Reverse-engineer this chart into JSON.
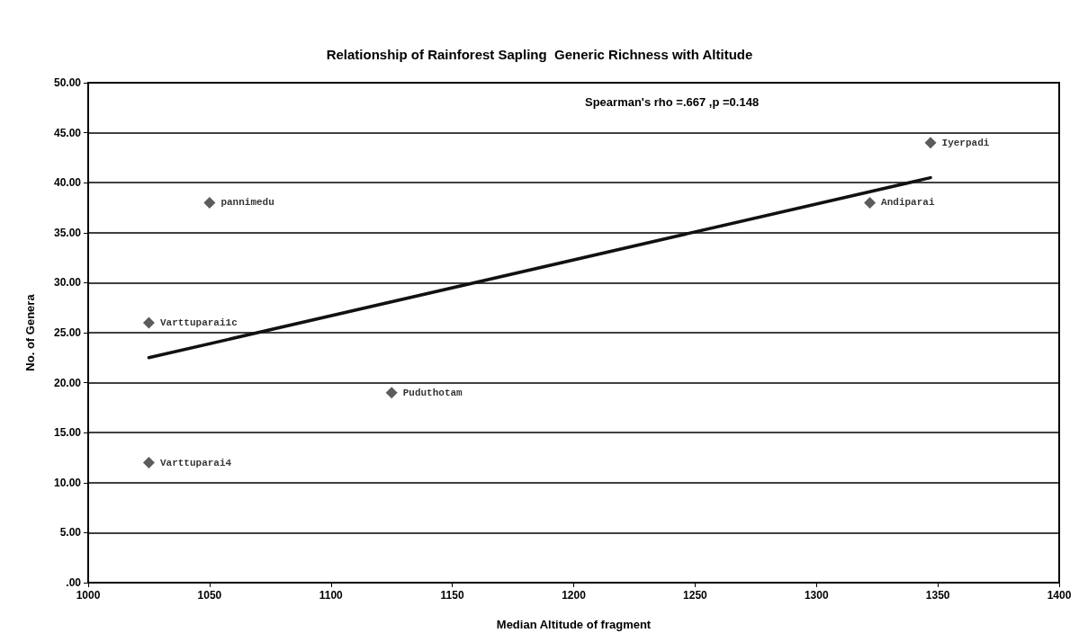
{
  "chart_data": {
    "type": "scatter",
    "title": "Relationship of Rainforest Sapling  Generic Richness with Altitude",
    "xlabel": "Median Altitude of fragment",
    "ylabel": "No. of Genera",
    "annotations": [
      "Spearman's rho =.667 ,p =0.148"
    ],
    "series": [
      {
        "name": "pannimedu",
        "color": "#333333",
        "x": [
          1050
        ],
        "values": [
          38
        ]
      },
      {
        "name": "Varttuparai1c",
        "color": "#333333",
        "x": [
          1025
        ],
        "values": [
          26
        ]
      },
      {
        "name": "Puduthotam",
        "color": "#333333",
        "x": [
          1125
        ],
        "values": [
          19
        ]
      },
      {
        "name": "Varttuparai4",
        "color": "#333333",
        "x": [
          1025
        ],
        "values": [
          12
        ]
      },
      {
        "name": "Iyerpadi",
        "color": "#333333",
        "x": [
          1347
        ],
        "values": [
          44
        ]
      },
      {
        "name": "Andiparai",
        "color": "#333333",
        "x": [
          1322
        ],
        "values": [
          38
        ]
      },
      {
        "type": "line",
        "color": "#111111",
        "x": [
          1025,
          1347
        ],
        "values": [
          22.5,
          40.5
        ],
        "marker": "none"
      }
    ],
    "xlim": [
      1000,
      1400
    ],
    "xticks": [
      1000,
      1050,
      1100,
      1150,
      1200,
      1250,
      1300,
      1350,
      1400
    ],
    "ylim": [
      0,
      50
    ],
    "yticks": [
      {
        "value": 0,
        "label": ".00"
      },
      {
        "value": 5,
        "label": "5.00"
      },
      {
        "value": 10,
        "label": "10.00"
      },
      {
        "value": 15,
        "label": "15.00"
      },
      {
        "value": 20,
        "label": "20.00"
      },
      {
        "value": 25,
        "label": "25.00"
      },
      {
        "value": 30,
        "label": "30.00"
      },
      {
        "value": 35,
        "label": "35.00"
      },
      {
        "value": 40,
        "label": "40.00"
      },
      {
        "value": 45,
        "label": "45.00"
      },
      {
        "value": 50,
        "label": "50.00"
      }
    ],
    "grid": "y",
    "marker": "diamond"
  }
}
